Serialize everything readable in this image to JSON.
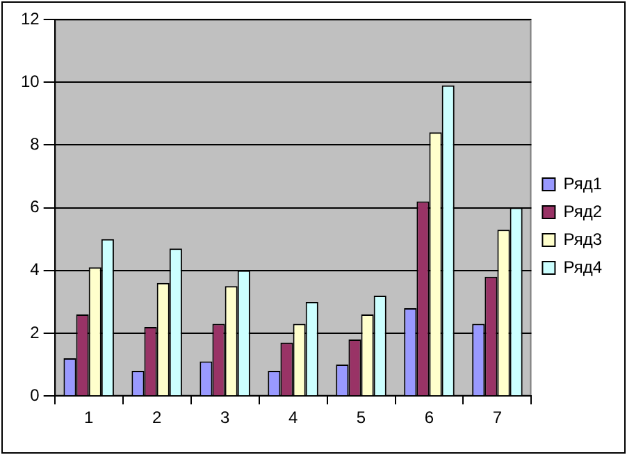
{
  "chart_data": {
    "type": "bar",
    "categories": [
      "1",
      "2",
      "3",
      "4",
      "5",
      "6",
      "7"
    ],
    "series": [
      {
        "name": "Ряд1",
        "color": "#9999ff",
        "values": [
          1.2,
          0.8,
          1.1,
          0.8,
          1.0,
          2.8,
          2.3
        ]
      },
      {
        "name": "Ряд2",
        "color": "#993366",
        "values": [
          2.6,
          2.2,
          2.3,
          1.7,
          1.8,
          6.2,
          3.8
        ]
      },
      {
        "name": "Ряд3",
        "color": "#ffffcc",
        "values": [
          4.1,
          3.6,
          3.5,
          2.3,
          2.6,
          8.4,
          5.3
        ]
      },
      {
        "name": "Ряд4",
        "color": "#ccffff",
        "values": [
          5.0,
          4.7,
          4.0,
          3.0,
          3.2,
          9.9,
          6.0
        ]
      }
    ],
    "ylim": [
      0,
      12
    ],
    "yticks": [
      0,
      2,
      4,
      6,
      8,
      10,
      12
    ],
    "grid": "y",
    "legend": "right"
  }
}
